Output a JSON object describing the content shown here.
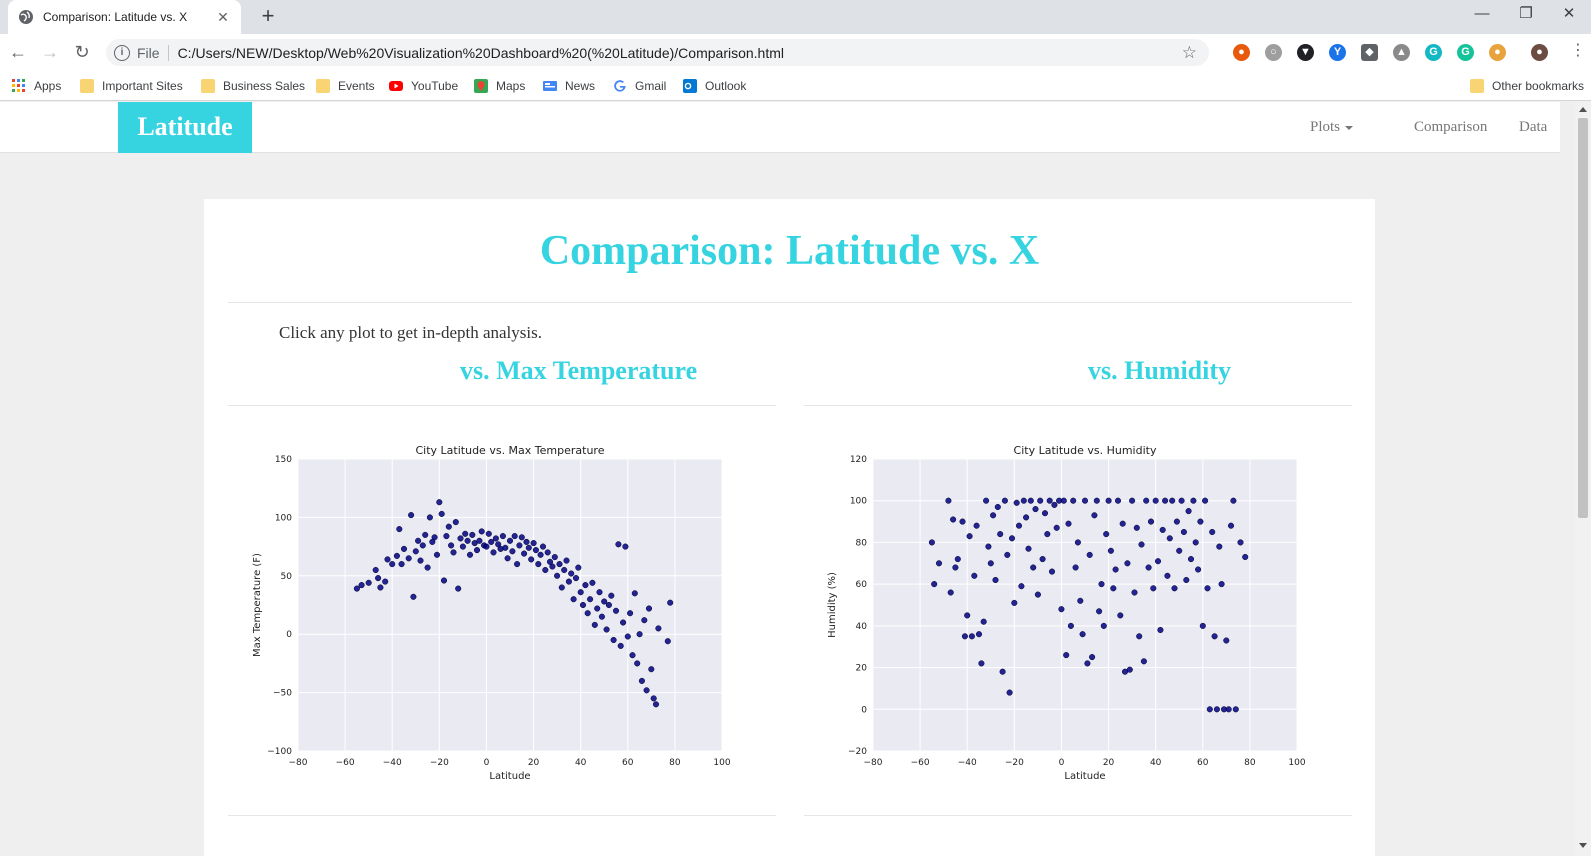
{
  "browser": {
    "tab_title": "Comparison: Latitude vs. X",
    "tab_close": "✕",
    "new_tab": "+",
    "window_controls": {
      "minimize": "—",
      "restore": "❐",
      "close": "✕"
    },
    "scheme_label": "File",
    "url": "C:/Users/NEW/Desktop/Web%20Visualization%20Dashboard%20(%20Latitude)/Comparison.html",
    "bookmarks": [
      {
        "label": "Apps",
        "icon": "apps-grid-icon"
      },
      {
        "label": "Important Sites",
        "icon": "folder-icon"
      },
      {
        "label": "Business Sales",
        "icon": "folder-icon"
      },
      {
        "label": "Events",
        "icon": "folder-icon"
      },
      {
        "label": "YouTube",
        "icon": "youtube-icon"
      },
      {
        "label": "Maps",
        "icon": "maps-icon"
      },
      {
        "label": "News",
        "icon": "news-icon"
      },
      {
        "label": "Gmail",
        "icon": "google-icon"
      },
      {
        "label": "Outlook",
        "icon": "outlook-icon"
      }
    ],
    "other_bookmarks": "Other bookmarks"
  },
  "navbar": {
    "brand": "Latitude",
    "links": {
      "plots": "Plots",
      "comparison": "Comparison",
      "data": "Data"
    }
  },
  "main": {
    "title": "Comparison: Latitude vs. X",
    "intro": "Click any plot to get in-depth analysis.",
    "sections": {
      "temperature": {
        "heading": "vs. Max Temperature"
      },
      "humidity": {
        "heading": "vs. Humidity"
      }
    }
  },
  "colors": {
    "accent": "#35d4e0",
    "plot_bg": "#eaeaf2",
    "marker": "#000080"
  },
  "chart_data": [
    {
      "type": "scatter",
      "title": "City Latitude vs. Max Temperature",
      "xlabel": "Latitude",
      "ylabel": "Max Temperature (F)",
      "xlim": [
        -80,
        100
      ],
      "ylim": [
        -100,
        150
      ],
      "xticks": [
        -80,
        -60,
        -40,
        -20,
        0,
        20,
        40,
        60,
        80,
        100
      ],
      "yticks": [
        -100,
        -50,
        0,
        50,
        100,
        150
      ],
      "grid": true,
      "points": [
        [
          -55,
          39
        ],
        [
          -53,
          42
        ],
        [
          -50,
          44
        ],
        [
          -47,
          55
        ],
        [
          -46,
          48
        ],
        [
          -45,
          40
        ],
        [
          -43,
          45
        ],
        [
          -42,
          64
        ],
        [
          -40,
          60
        ],
        [
          -38,
          67
        ],
        [
          -37,
          90
        ],
        [
          -36,
          60
        ],
        [
          -35,
          73
        ],
        [
          -33,
          65
        ],
        [
          -32,
          102
        ],
        [
          -31,
          32
        ],
        [
          -30,
          71
        ],
        [
          -29,
          80
        ],
        [
          -28,
          63
        ],
        [
          -27,
          76
        ],
        [
          -26,
          85
        ],
        [
          -25,
          57
        ],
        [
          -24,
          100
        ],
        [
          -23,
          79
        ],
        [
          -22,
          83
        ],
        [
          -21,
          68
        ],
        [
          -20,
          113
        ],
        [
          -19,
          103
        ],
        [
          -18,
          46
        ],
        [
          -17,
          84
        ],
        [
          -16,
          92
        ],
        [
          -15,
          76
        ],
        [
          -14,
          70
        ],
        [
          -13,
          96
        ],
        [
          -12,
          39
        ],
        [
          -11,
          82
        ],
        [
          -10,
          75
        ],
        [
          -9,
          86
        ],
        [
          -8,
          80
        ],
        [
          -7,
          68
        ],
        [
          -6,
          85
        ],
        [
          -5,
          78
        ],
        [
          -4,
          72
        ],
        [
          -3,
          80
        ],
        [
          -2,
          88
        ],
        [
          -1,
          76
        ],
        [
          0,
          75
        ],
        [
          1,
          86
        ],
        [
          2,
          79
        ],
        [
          3,
          70
        ],
        [
          4,
          82
        ],
        [
          5,
          77
        ],
        [
          6,
          73
        ],
        [
          7,
          84
        ],
        [
          8,
          74
        ],
        [
          9,
          65
        ],
        [
          10,
          80
        ],
        [
          11,
          71
        ],
        [
          12,
          84
        ],
        [
          13,
          60
        ],
        [
          14,
          76
        ],
        [
          15,
          83
        ],
        [
          16,
          69
        ],
        [
          17,
          79
        ],
        [
          18,
          74
        ],
        [
          19,
          64
        ],
        [
          20,
          78
        ],
        [
          21,
          72
        ],
        [
          22,
          60
        ],
        [
          23,
          68
        ],
        [
          24,
          75
        ],
        [
          25,
          55
        ],
        [
          26,
          70
        ],
        [
          27,
          62
        ],
        [
          28,
          58
        ],
        [
          29,
          66
        ],
        [
          30,
          50
        ],
        [
          31,
          60
        ],
        [
          32,
          40
        ],
        [
          33,
          55
        ],
        [
          34,
          63
        ],
        [
          35,
          45
        ],
        [
          36,
          52
        ],
        [
          37,
          30
        ],
        [
          38,
          48
        ],
        [
          39,
          57
        ],
        [
          40,
          36
        ],
        [
          41,
          25
        ],
        [
          42,
          42
        ],
        [
          43,
          18
        ],
        [
          44,
          30
        ],
        [
          45,
          44
        ],
        [
          46,
          8
        ],
        [
          47,
          22
        ],
        [
          48,
          36
        ],
        [
          49,
          15
        ],
        [
          50,
          28
        ],
        [
          51,
          4
        ],
        [
          52,
          25
        ],
        [
          53,
          33
        ],
        [
          54,
          -5
        ],
        [
          55,
          20
        ],
        [
          56,
          77
        ],
        [
          57,
          -10
        ],
        [
          58,
          10
        ],
        [
          59,
          75
        ],
        [
          60,
          -2
        ],
        [
          61,
          18
        ],
        [
          62,
          -18
        ],
        [
          63,
          35
        ],
        [
          64,
          -25
        ],
        [
          65,
          0
        ],
        [
          66,
          -40
        ],
        [
          67,
          12
        ],
        [
          68,
          -48
        ],
        [
          69,
          22
        ],
        [
          70,
          -30
        ],
        [
          71,
          -55
        ],
        [
          72,
          -60
        ],
        [
          73,
          5
        ],
        [
          78,
          27
        ],
        [
          77,
          -6
        ]
      ]
    },
    {
      "type": "scatter",
      "title": "City Latitude vs. Humidity",
      "xlabel": "Latitude",
      "ylabel": "Humidity (%)",
      "xlim": [
        -80,
        100
      ],
      "ylim": [
        -20,
        120
      ],
      "xticks": [
        -80,
        -60,
        -40,
        -20,
        0,
        20,
        40,
        60,
        80,
        100
      ],
      "yticks": [
        -20,
        0,
        20,
        40,
        60,
        80,
        100,
        120
      ],
      "grid": true,
      "points": [
        [
          -55,
          80
        ],
        [
          -54,
          60
        ],
        [
          -52,
          70
        ],
        [
          -48,
          100
        ],
        [
          -47,
          56
        ],
        [
          -46,
          91
        ],
        [
          -45,
          68
        ],
        [
          -44,
          72
        ],
        [
          -42,
          90
        ],
        [
          -41,
          35
        ],
        [
          -40,
          45
        ],
        [
          -39,
          83
        ],
        [
          -38,
          35
        ],
        [
          -37,
          64
        ],
        [
          -36,
          88
        ],
        [
          -35,
          36
        ],
        [
          -34,
          22
        ],
        [
          -33,
          42
        ],
        [
          -32,
          100
        ],
        [
          -31,
          78
        ],
        [
          -30,
          70
        ],
        [
          -29,
          93
        ],
        [
          -28,
          62
        ],
        [
          -27,
          97
        ],
        [
          -26,
          84
        ],
        [
          -25,
          18
        ],
        [
          -24,
          100
        ],
        [
          -23,
          74
        ],
        [
          -22,
          8
        ],
        [
          -21,
          82
        ],
        [
          -20,
          51
        ],
        [
          -19,
          99
        ],
        [
          -18,
          88
        ],
        [
          -17,
          59
        ],
        [
          -16,
          100
        ],
        [
          -15,
          92
        ],
        [
          -14,
          77
        ],
        [
          -13,
          100
        ],
        [
          -12,
          68
        ],
        [
          -11,
          96
        ],
        [
          -10,
          55
        ],
        [
          -9,
          100
        ],
        [
          -8,
          72
        ],
        [
          -7,
          94
        ],
        [
          -6,
          84
        ],
        [
          -5,
          100
        ],
        [
          -4,
          66
        ],
        [
          -3,
          98
        ],
        [
          -2,
          87
        ],
        [
          -1,
          100
        ],
        [
          0,
          48
        ],
        [
          1,
          100
        ],
        [
          2,
          26
        ],
        [
          3,
          89
        ],
        [
          4,
          40
        ],
        [
          5,
          100
        ],
        [
          6,
          68
        ],
        [
          7,
          80
        ],
        [
          8,
          52
        ],
        [
          9,
          36
        ],
        [
          10,
          100
        ],
        [
          11,
          22
        ],
        [
          12,
          74
        ],
        [
          13,
          25
        ],
        [
          14,
          93
        ],
        [
          15,
          100
        ],
        [
          16,
          47
        ],
        [
          17,
          60
        ],
        [
          18,
          40
        ],
        [
          19,
          84
        ],
        [
          20,
          100
        ],
        [
          21,
          76
        ],
        [
          22,
          58
        ],
        [
          23,
          67
        ],
        [
          24,
          100
        ],
        [
          25,
          45
        ],
        [
          26,
          89
        ],
        [
          27,
          18
        ],
        [
          28,
          70
        ],
        [
          29,
          19
        ],
        [
          30,
          100
        ],
        [
          31,
          56
        ],
        [
          32,
          87
        ],
        [
          33,
          35
        ],
        [
          34,
          79
        ],
        [
          35,
          23
        ],
        [
          36,
          100
        ],
        [
          37,
          68
        ],
        [
          38,
          90
        ],
        [
          39,
          58
        ],
        [
          40,
          100
        ],
        [
          41,
          71
        ],
        [
          42,
          38
        ],
        [
          43,
          86
        ],
        [
          44,
          100
        ],
        [
          45,
          64
        ],
        [
          46,
          82
        ],
        [
          47,
          100
        ],
        [
          48,
          58
        ],
        [
          49,
          90
        ],
        [
          50,
          76
        ],
        [
          51,
          100
        ],
        [
          52,
          85
        ],
        [
          53,
          62
        ],
        [
          54,
          95
        ],
        [
          55,
          72
        ],
        [
          56,
          100
        ],
        [
          57,
          80
        ],
        [
          58,
          67
        ],
        [
          59,
          90
        ],
        [
          60,
          40
        ],
        [
          61,
          100
        ],
        [
          62,
          58
        ],
        [
          63,
          0
        ],
        [
          64,
          85
        ],
        [
          65,
          35
        ],
        [
          66,
          0
        ],
        [
          67,
          78
        ],
        [
          68,
          60
        ],
        [
          69,
          0
        ],
        [
          70,
          33
        ],
        [
          71,
          0
        ],
        [
          72,
          88
        ],
        [
          73,
          100
        ],
        [
          74,
          0
        ],
        [
          76,
          80
        ],
        [
          78,
          73
        ]
      ]
    }
  ]
}
